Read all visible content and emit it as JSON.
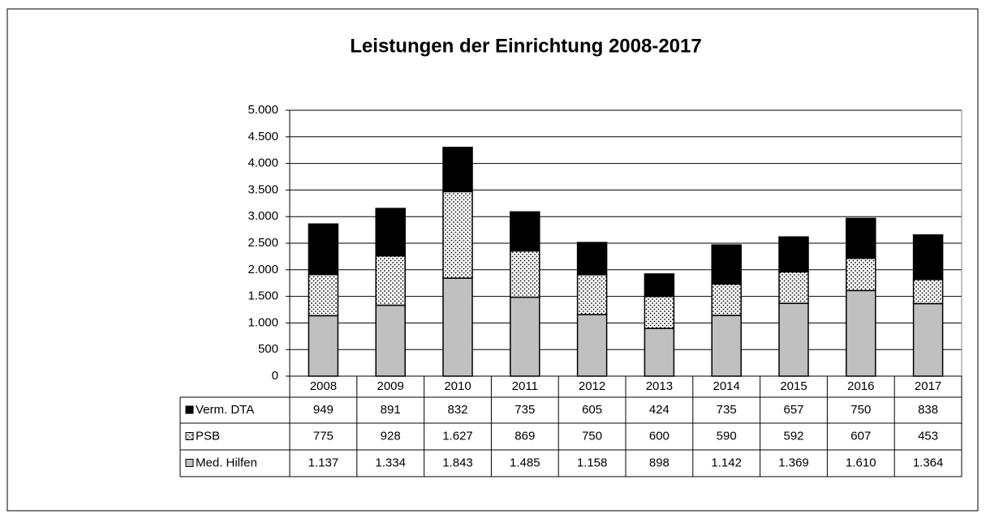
{
  "chart_data": {
    "type": "stacked_bar",
    "title": "Leistungen der Einrichtung 2008-2017",
    "categories": [
      "2008",
      "2009",
      "2010",
      "2011",
      "2012",
      "2013",
      "2014",
      "2015",
      "2016",
      "2017"
    ],
    "series": [
      {
        "name": "Verm. DTA",
        "color": "#000000",
        "pattern": "solid",
        "values": [
          949,
          891,
          832,
          735,
          605,
          424,
          735,
          657,
          750,
          838
        ],
        "value_labels": [
          "949",
          "891",
          "832",
          "735",
          "605",
          "424",
          "735",
          "657",
          "750",
          "838"
        ]
      },
      {
        "name": "PSB",
        "color": "#ffffff",
        "pattern": "dots",
        "values": [
          775,
          928,
          1627,
          869,
          750,
          600,
          590,
          592,
          607,
          453
        ],
        "value_labels": [
          "775",
          "928",
          "1.627",
          "869",
          "750",
          "600",
          "590",
          "592",
          "607",
          "453"
        ]
      },
      {
        "name": "Med. Hilfen",
        "color": "#c0c0c0",
        "pattern": "solid",
        "values": [
          1137,
          1334,
          1843,
          1485,
          1158,
          898,
          1142,
          1369,
          1610,
          1364
        ],
        "value_labels": [
          "1.137",
          "1.334",
          "1.843",
          "1.485",
          "1.158",
          "898",
          "1.142",
          "1.369",
          "1.610",
          "1.364"
        ]
      }
    ],
    "stack_order": "bottom_up_reverse",
    "ylim": [
      0,
      5000
    ],
    "yticks": [
      0,
      500,
      {
        "value": 1000,
        "label": "1.000"
      },
      {
        "value": 1500,
        "label": "1.500"
      },
      {
        "value": 2000,
        "label": "2.000"
      },
      {
        "value": 2500,
        "label": "2.500"
      },
      {
        "value": 3000,
        "label": "3.000"
      },
      {
        "value": 3500,
        "label": "3.500"
      },
      {
        "value": 4000,
        "label": "4.000"
      },
      {
        "value": 4500,
        "label": "4.500"
      },
      {
        "value": 5000,
        "label": "5.000"
      }
    ],
    "grid": true,
    "data_table": true
  }
}
